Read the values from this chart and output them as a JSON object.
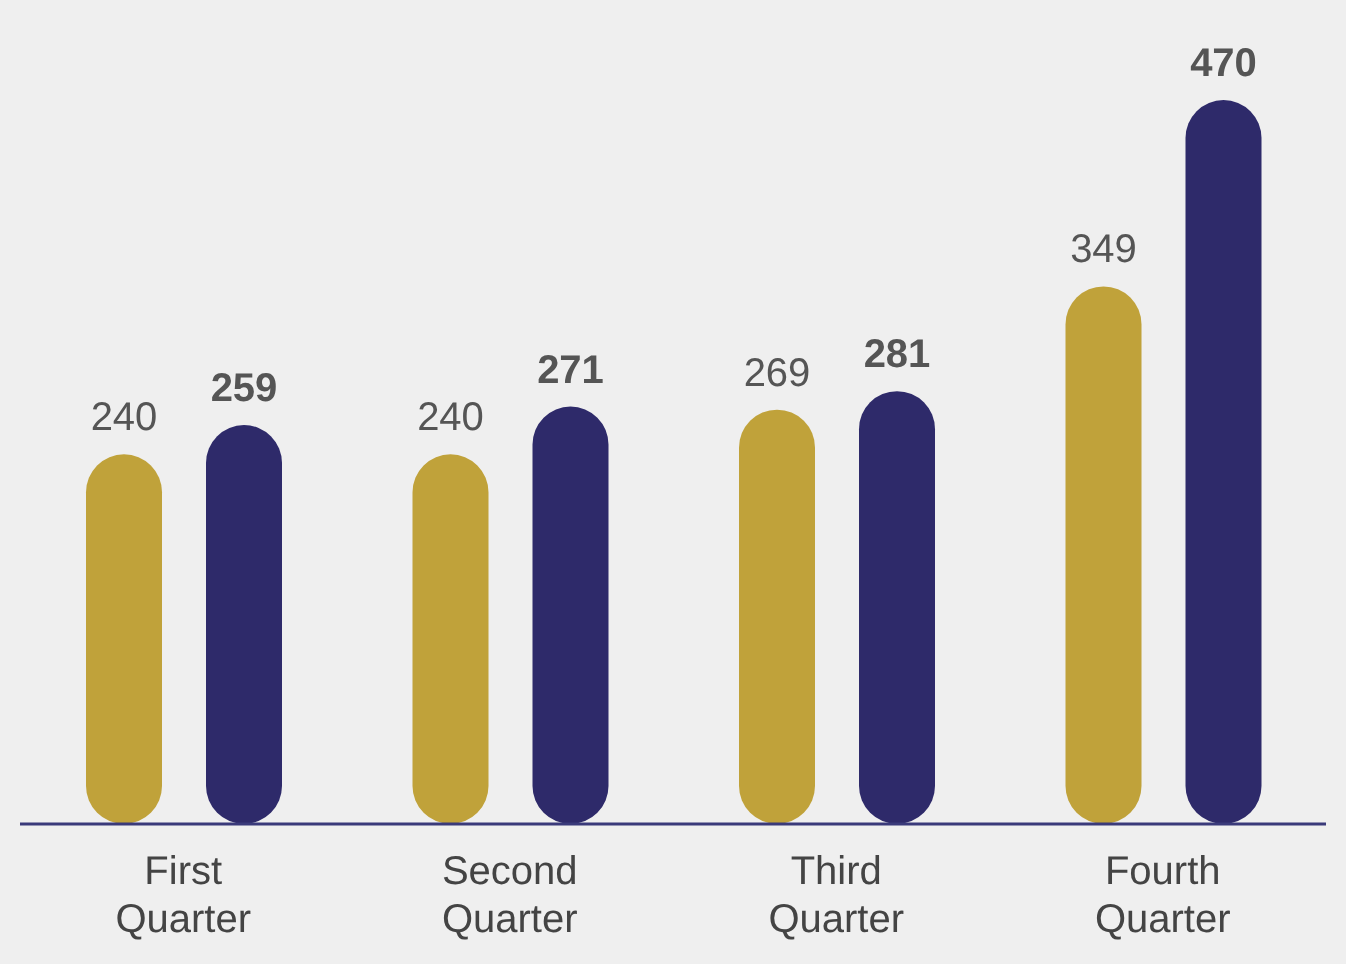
{
  "chart_data": {
    "type": "bar",
    "categories": [
      "First Quarter",
      "Second Quarter",
      "Third Quarter",
      "Fourth Quarter"
    ],
    "series": [
      {
        "color": "#c0a23a",
        "values": [
          240,
          240,
          269,
          349
        ]
      },
      {
        "color": "#2e2a6a",
        "values": [
          259,
          271,
          281,
          470
        ]
      }
    ],
    "data_labels": true,
    "grid": false,
    "legend": false
  }
}
